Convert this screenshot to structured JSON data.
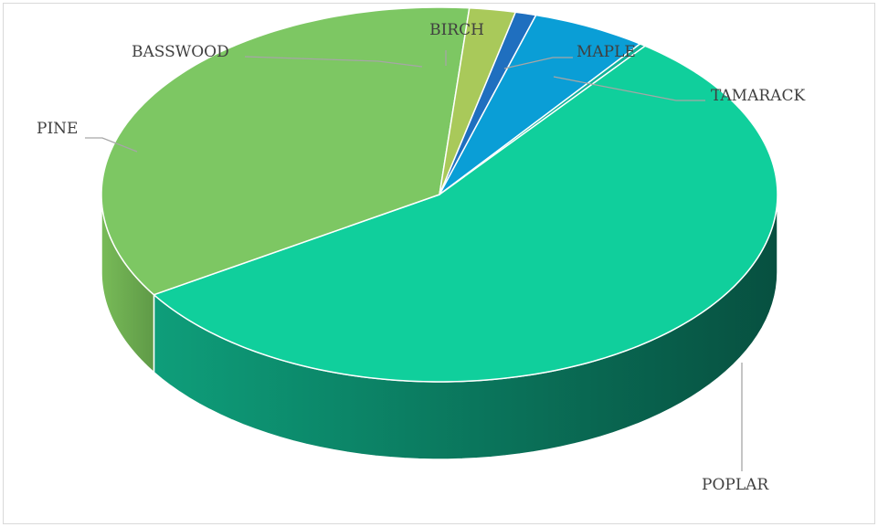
{
  "chart_data": {
    "type": "pie",
    "style": "3d",
    "title": "",
    "categories": [
      "BIRCH",
      "MAPLE",
      "TAMARACK",
      "POPLAR",
      "PINE",
      "BASSWOOD"
    ],
    "values": [
      1.0,
      5.5,
      0.3,
      55.6,
      35.4,
      2.2
    ],
    "unit": "percent (estimated)",
    "legend": "none",
    "colors": {
      "BIRCH": "#1f6fbf",
      "MAPLE": "#0a9ed6",
      "TAMARACK": "#12b39a",
      "POPLAR": "#10cf9c",
      "PINE": "#7dc763",
      "BASSWOOD": "#a9c95a"
    },
    "side_colors": {
      "POPLAR": [
        "#0e9e7a",
        "#075040"
      ],
      "PINE": [
        "#78bb58",
        "#5f9a47"
      ]
    }
  }
}
